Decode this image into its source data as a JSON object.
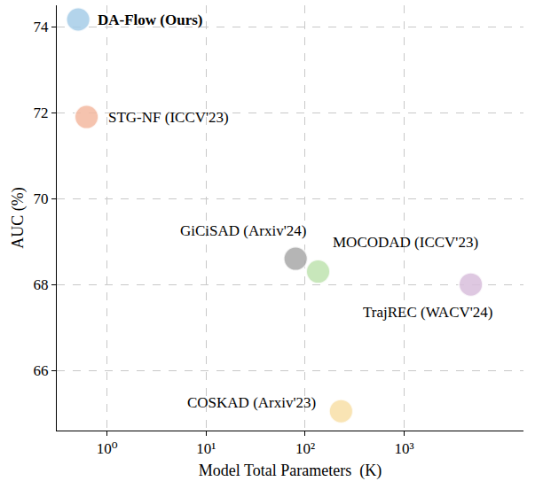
{
  "chart_data": {
    "type": "scatter",
    "x_label": "Model Total Parameters  (K)",
    "y_label": "AUC (%)",
    "log": "x",
    "grid": true,
    "marker": "circle",
    "xlim": [
      0.31,
      16000
    ],
    "ylim": [
      64.6,
      74.5
    ],
    "xticks": [
      {
        "value": 1,
        "label": "10⁰"
      },
      {
        "value": 10,
        "label": "10¹"
      },
      {
        "value": 100,
        "label": "10²"
      },
      {
        "value": 1000,
        "label": "10³"
      }
    ],
    "yticks": [
      66,
      68,
      70,
      72,
      74
    ],
    "series": [
      {
        "name": "DA-Flow (Ours)",
        "color": "#a6cde8",
        "x": [
          0.51
        ],
        "values": [
          74.17
        ]
      },
      {
        "name": "STG-NF (ICCV'23)",
        "color": "#f4b9a0",
        "x": [
          0.62
        ],
        "values": [
          71.9
        ]
      },
      {
        "name": "GiCiSAD (Arxiv'24)",
        "color": "#a9a9a9",
        "x": [
          80
        ],
        "values": [
          68.6
        ]
      },
      {
        "name": "MOCODAD (ICCV'23)",
        "color": "#bfe3b0",
        "x": [
          135
        ],
        "values": [
          68.3
        ]
      },
      {
        "name": "TrajREC (WACV'24)",
        "color": "#d9bfdc",
        "x": [
          4700
        ],
        "values": [
          68.0
        ]
      },
      {
        "name": "COSKAD (Arxiv'23)",
        "color": "#f8e0a8",
        "x": [
          230
        ],
        "values": [
          65.05
        ]
      }
    ]
  }
}
